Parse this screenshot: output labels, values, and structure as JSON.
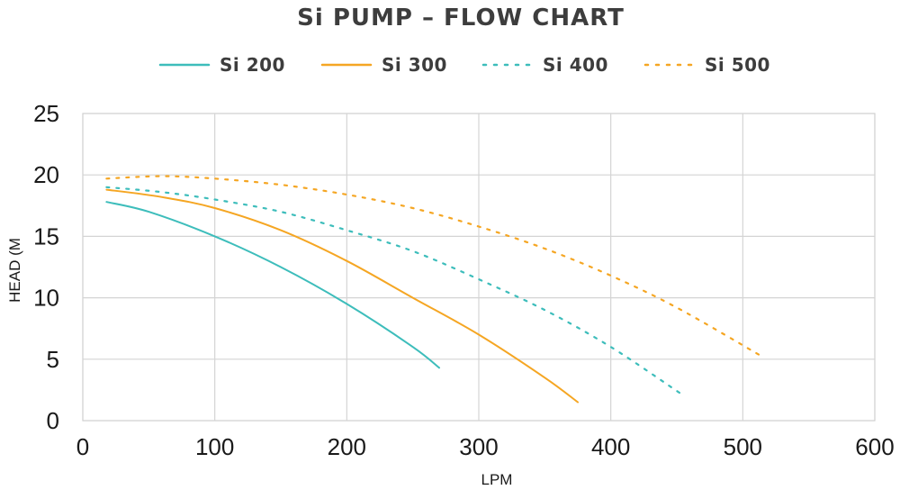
{
  "chart_data": {
    "type": "line",
    "title": "Si PUMP – FLOW CHART",
    "xlabel": "LPM",
    "ylabel": "HEAD (M",
    "xlim": [
      0,
      600
    ],
    "ylim": [
      0,
      25
    ],
    "x_ticks": [
      0,
      100,
      200,
      300,
      400,
      500,
      600
    ],
    "y_ticks": [
      0,
      5,
      10,
      15,
      20,
      25
    ],
    "grid": true,
    "legend_position": "top",
    "series": [
      {
        "name": "Si 200",
        "color": "#3dbdbb",
        "style": "solid",
        "points": [
          [
            18,
            17.8
          ],
          [
            50,
            17.0
          ],
          [
            100,
            15.0
          ],
          [
            150,
            12.5
          ],
          [
            200,
            9.5
          ],
          [
            250,
            6.0
          ],
          [
            270,
            4.3
          ]
        ]
      },
      {
        "name": "Si 300",
        "color": "#f5a623",
        "style": "solid",
        "points": [
          [
            18,
            18.8
          ],
          [
            60,
            18.2
          ],
          [
            100,
            17.3
          ],
          [
            150,
            15.5
          ],
          [
            200,
            13.0
          ],
          [
            250,
            10.0
          ],
          [
            300,
            7.0
          ],
          [
            350,
            3.5
          ],
          [
            375,
            1.5
          ]
        ]
      },
      {
        "name": "Si 400",
        "color": "#3dbdbb",
        "style": "dotted",
        "points": [
          [
            18,
            19.0
          ],
          [
            60,
            18.6
          ],
          [
            100,
            18.0
          ],
          [
            150,
            17.0
          ],
          [
            200,
            15.5
          ],
          [
            250,
            13.8
          ],
          [
            300,
            11.5
          ],
          [
            350,
            9.0
          ],
          [
            400,
            6.0
          ],
          [
            453,
            2.2
          ]
        ]
      },
      {
        "name": "Si 500",
        "color": "#f5a623",
        "style": "dotted",
        "points": [
          [
            18,
            19.7
          ],
          [
            60,
            19.9
          ],
          [
            100,
            19.7
          ],
          [
            150,
            19.2
          ],
          [
            200,
            18.4
          ],
          [
            250,
            17.3
          ],
          [
            300,
            15.8
          ],
          [
            350,
            14.0
          ],
          [
            400,
            11.8
          ],
          [
            450,
            9.2
          ],
          [
            515,
            5.2
          ]
        ]
      }
    ]
  }
}
